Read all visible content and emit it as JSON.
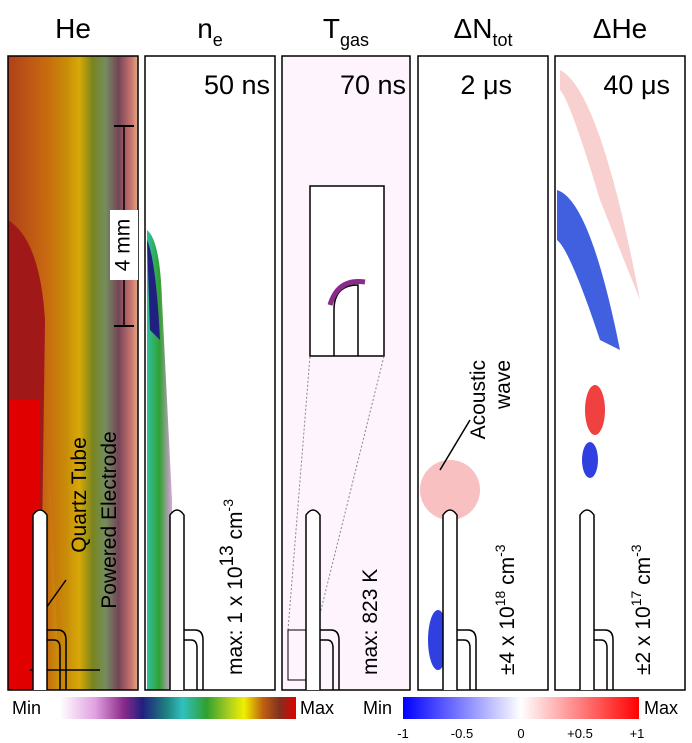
{
  "panels": [
    {
      "title": {
        "main": "He"
      },
      "annotations": {
        "scale": "4 mm",
        "tube": "Quartz Tube",
        "electrode": "Powered Electrode"
      }
    },
    {
      "title": {
        "main": "n",
        "sub": "e"
      },
      "time": "50 ns",
      "max_label": {
        "prefix": "max: 1 x 10",
        "exponent": "13",
        "unit": " cm",
        "unit_exponent": "-3"
      }
    },
    {
      "title": {
        "main": "T",
        "sub": "gas"
      },
      "time": "70 ns",
      "max_label": {
        "prefix": "max: 823 K"
      }
    },
    {
      "title": {
        "main": "ΔN",
        "sub": "tot"
      },
      "time": "2 μs",
      "max_label": {
        "prefix": "±4 x 10",
        "exponent": "18",
        "unit": " cm",
        "unit_exponent": "-3"
      },
      "annotation": {
        "line1": "Acoustic",
        "line2": "wave"
      }
    },
    {
      "title": {
        "main": "ΔHe"
      },
      "time": "40 μs",
      "max_label": {
        "prefix": "±2 x 10",
        "exponent": "17",
        "unit": " cm",
        "unit_exponent": "-3"
      }
    }
  ],
  "colorbars": [
    {
      "min": "Min",
      "max": "Max"
    },
    {
      "min": "Min",
      "max": "Max",
      "ticks": [
        "-1",
        "-0.5",
        "0",
        "+0.5",
        "+1"
      ]
    }
  ]
}
